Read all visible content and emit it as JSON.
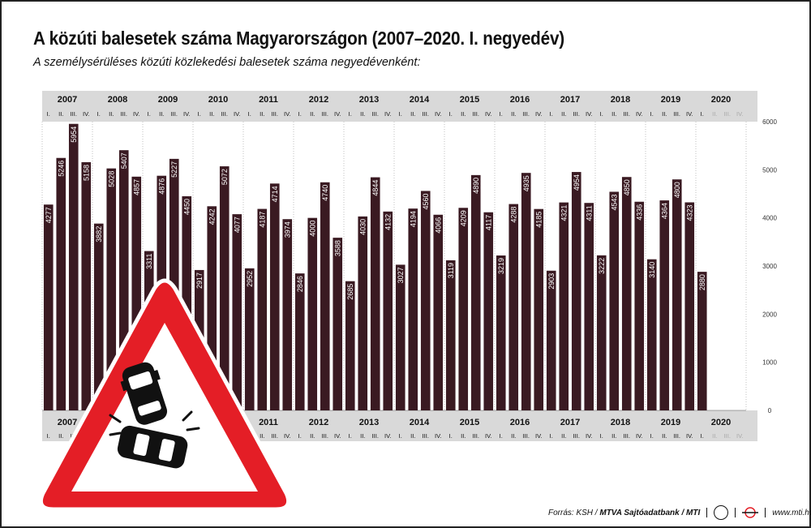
{
  "chart_data": {
    "type": "bar",
    "title": "A közúti balesetek száma Magyarországon (2007–2020. I. negyedév)",
    "subtitle": "A személysérüléses közúti közlekedési balesetek száma negyedévenként:",
    "years": [
      "2007",
      "2008",
      "2009",
      "2010",
      "2011",
      "2012",
      "2013",
      "2014",
      "2015",
      "2016",
      "2017",
      "2018",
      "2019",
      "2020"
    ],
    "quarter_labels": [
      "I.",
      "II.",
      "III.",
      "IV."
    ],
    "values": [
      4277,
      5246,
      5954,
      5158,
      3882,
      5028,
      5407,
      4857,
      3311,
      4876,
      5227,
      4450,
      2917,
      4242,
      5072,
      4077,
      2952,
      4187,
      4714,
      3974,
      2846,
      4000,
      4740,
      3588,
      2685,
      4030,
      4844,
      4132,
      3027,
      4194,
      4560,
      4066,
      3119,
      4209,
      4890,
      4117,
      3219,
      4288,
      4935,
      4185,
      2903,
      4321,
      4954,
      4311,
      3222,
      4543,
      4850,
      4336,
      3140,
      4364,
      4800,
      4323,
      2880
    ],
    "yticks": [
      0,
      1000,
      2000,
      3000,
      4000,
      5000,
      6000
    ],
    "ylim": [
      0,
      6000
    ],
    "grid": true,
    "bar_color": "#3a1a22",
    "label_color": "#ffffff"
  },
  "footer": {
    "source_label": "Forrás: KSH /",
    "source_agency": "MTVA Sajtóadatbank / MTI",
    "url": "www.mti.hu"
  }
}
